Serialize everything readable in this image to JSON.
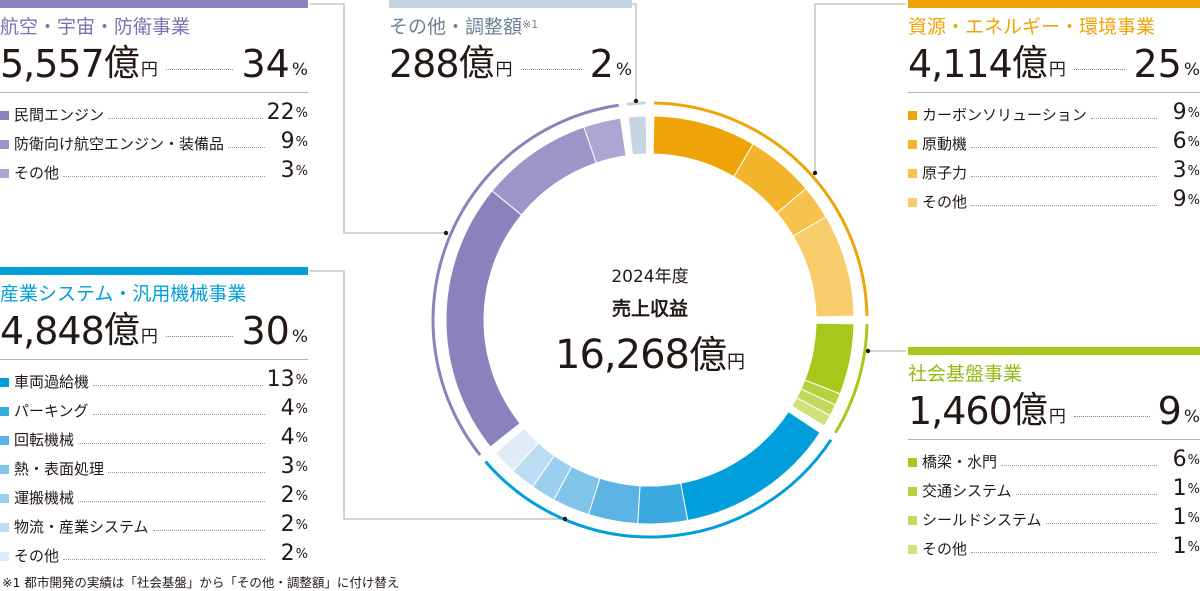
{
  "center": {
    "year": "2024年度",
    "label": "売上収益",
    "amount": "16,268",
    "oku": "億",
    "yen": "円"
  },
  "segments": {
    "aero": {
      "title": "航空・宇宙・防衛事業",
      "amount": "5,557",
      "pct": "34",
      "color": "#8a82bd",
      "items": [
        {
          "label": "民間エンジン",
          "pct": "22",
          "color": "#8a82bd"
        },
        {
          "label": "防衛向け航空エンジン・装備品",
          "pct": "9",
          "color": "#9d94c8"
        },
        {
          "label": "その他",
          "pct": "3",
          "color": "#aea6d2"
        }
      ]
    },
    "other": {
      "title": "その他・調整額",
      "note_mark": "※1",
      "amount": "288",
      "pct": "2",
      "color": "#c6d4e1"
    },
    "energy": {
      "title": "資源・エネルギー・環境事業",
      "amount": "4,114",
      "pct": "25",
      "color": "#eea408",
      "items": [
        {
          "label": "カーボンソリューション",
          "pct": "9",
          "color": "#eea408"
        },
        {
          "label": "原動機",
          "pct": "6",
          "color": "#f2b42a"
        },
        {
          "label": "原子力",
          "pct": "3",
          "color": "#f5c24e"
        },
        {
          "label": "その他",
          "pct": "9",
          "color": "#f7cd6c"
        }
      ]
    },
    "industrial": {
      "title": "産業システム・汎用機械事業",
      "amount": "4,848",
      "pct": "30",
      "color": "#009fdb",
      "items": [
        {
          "label": "車両過給機",
          "pct": "13",
          "color": "#009fdb"
        },
        {
          "label": "パーキング",
          "pct": "4",
          "color": "#3aa9e0"
        },
        {
          "label": "回転機械",
          "pct": "4",
          "color": "#5cb4e5"
        },
        {
          "label": "熱・表面処理",
          "pct": "3",
          "color": "#80c4ea"
        },
        {
          "label": "運搬機械",
          "pct": "2",
          "color": "#9ccfef"
        },
        {
          "label": "物流・産業システム",
          "pct": "2",
          "color": "#bcdcf3"
        },
        {
          "label": "その他",
          "pct": "2",
          "color": "#dfecf8"
        }
      ]
    },
    "infra": {
      "title": "社会基盤事業",
      "amount": "1,460",
      "pct": "9",
      "color": "#a7c81b",
      "items": [
        {
          "label": "橋梁・水門",
          "pct": "6",
          "color": "#a7c81b"
        },
        {
          "label": "交通システム",
          "pct": "1",
          "color": "#b5d13c"
        },
        {
          "label": "シールドシステム",
          "pct": "1",
          "color": "#c2d95b"
        },
        {
          "label": "その他",
          "pct": "1",
          "color": "#cfe17c"
        }
      ]
    }
  },
  "units": {
    "oku": "億",
    "yen": "円",
    "percent": "%"
  },
  "footnote": "※1 都市開発の実績は「社会基盤」から「その他・調整額」に付け替え",
  "chart_data": {
    "type": "pie",
    "subtype": "donut",
    "title": "2024年度 売上収益 16,268億円",
    "unit": "億円 / %",
    "categories": [
      "資源・エネルギー・環境事業",
      "社会基盤事業",
      "産業システム・汎用機械事業",
      "航空・宇宙・防衛事業",
      "その他・調整額"
    ],
    "values": [
      4114,
      1460,
      4848,
      5557,
      288
    ],
    "percent": [
      25,
      9,
      30,
      34,
      2
    ],
    "total": 16268,
    "sub_series": [
      {
        "name": "資源・エネルギー・環境事業",
        "labels": [
          "カーボンソリューション",
          "原動機",
          "原子力",
          "その他"
        ],
        "percent": [
          9,
          6,
          3,
          9
        ]
      },
      {
        "name": "社会基盤事業",
        "labels": [
          "橋梁・水門",
          "交通システム",
          "シールドシステム",
          "その他"
        ],
        "percent": [
          6,
          1,
          1,
          1
        ]
      },
      {
        "name": "産業システム・汎用機械事業",
        "labels": [
          "車両過給機",
          "パーキング",
          "回転機械",
          "熱・表面処理",
          "運搬機械",
          "物流・産業システム",
          "その他"
        ],
        "percent": [
          13,
          4,
          4,
          3,
          2,
          2,
          2
        ]
      },
      {
        "name": "航空・宇宙・防衛事業",
        "labels": [
          "民間エンジン",
          "防衛向け航空エンジン・装備品",
          "その他"
        ],
        "percent": [
          22,
          9,
          3
        ]
      },
      {
        "name": "その他・調整額",
        "labels": [
          "その他・調整額"
        ],
        "percent": [
          2
        ]
      }
    ],
    "start_angle_deg": 0,
    "direction": "clockwise",
    "legend_position": "callouts around donut"
  }
}
